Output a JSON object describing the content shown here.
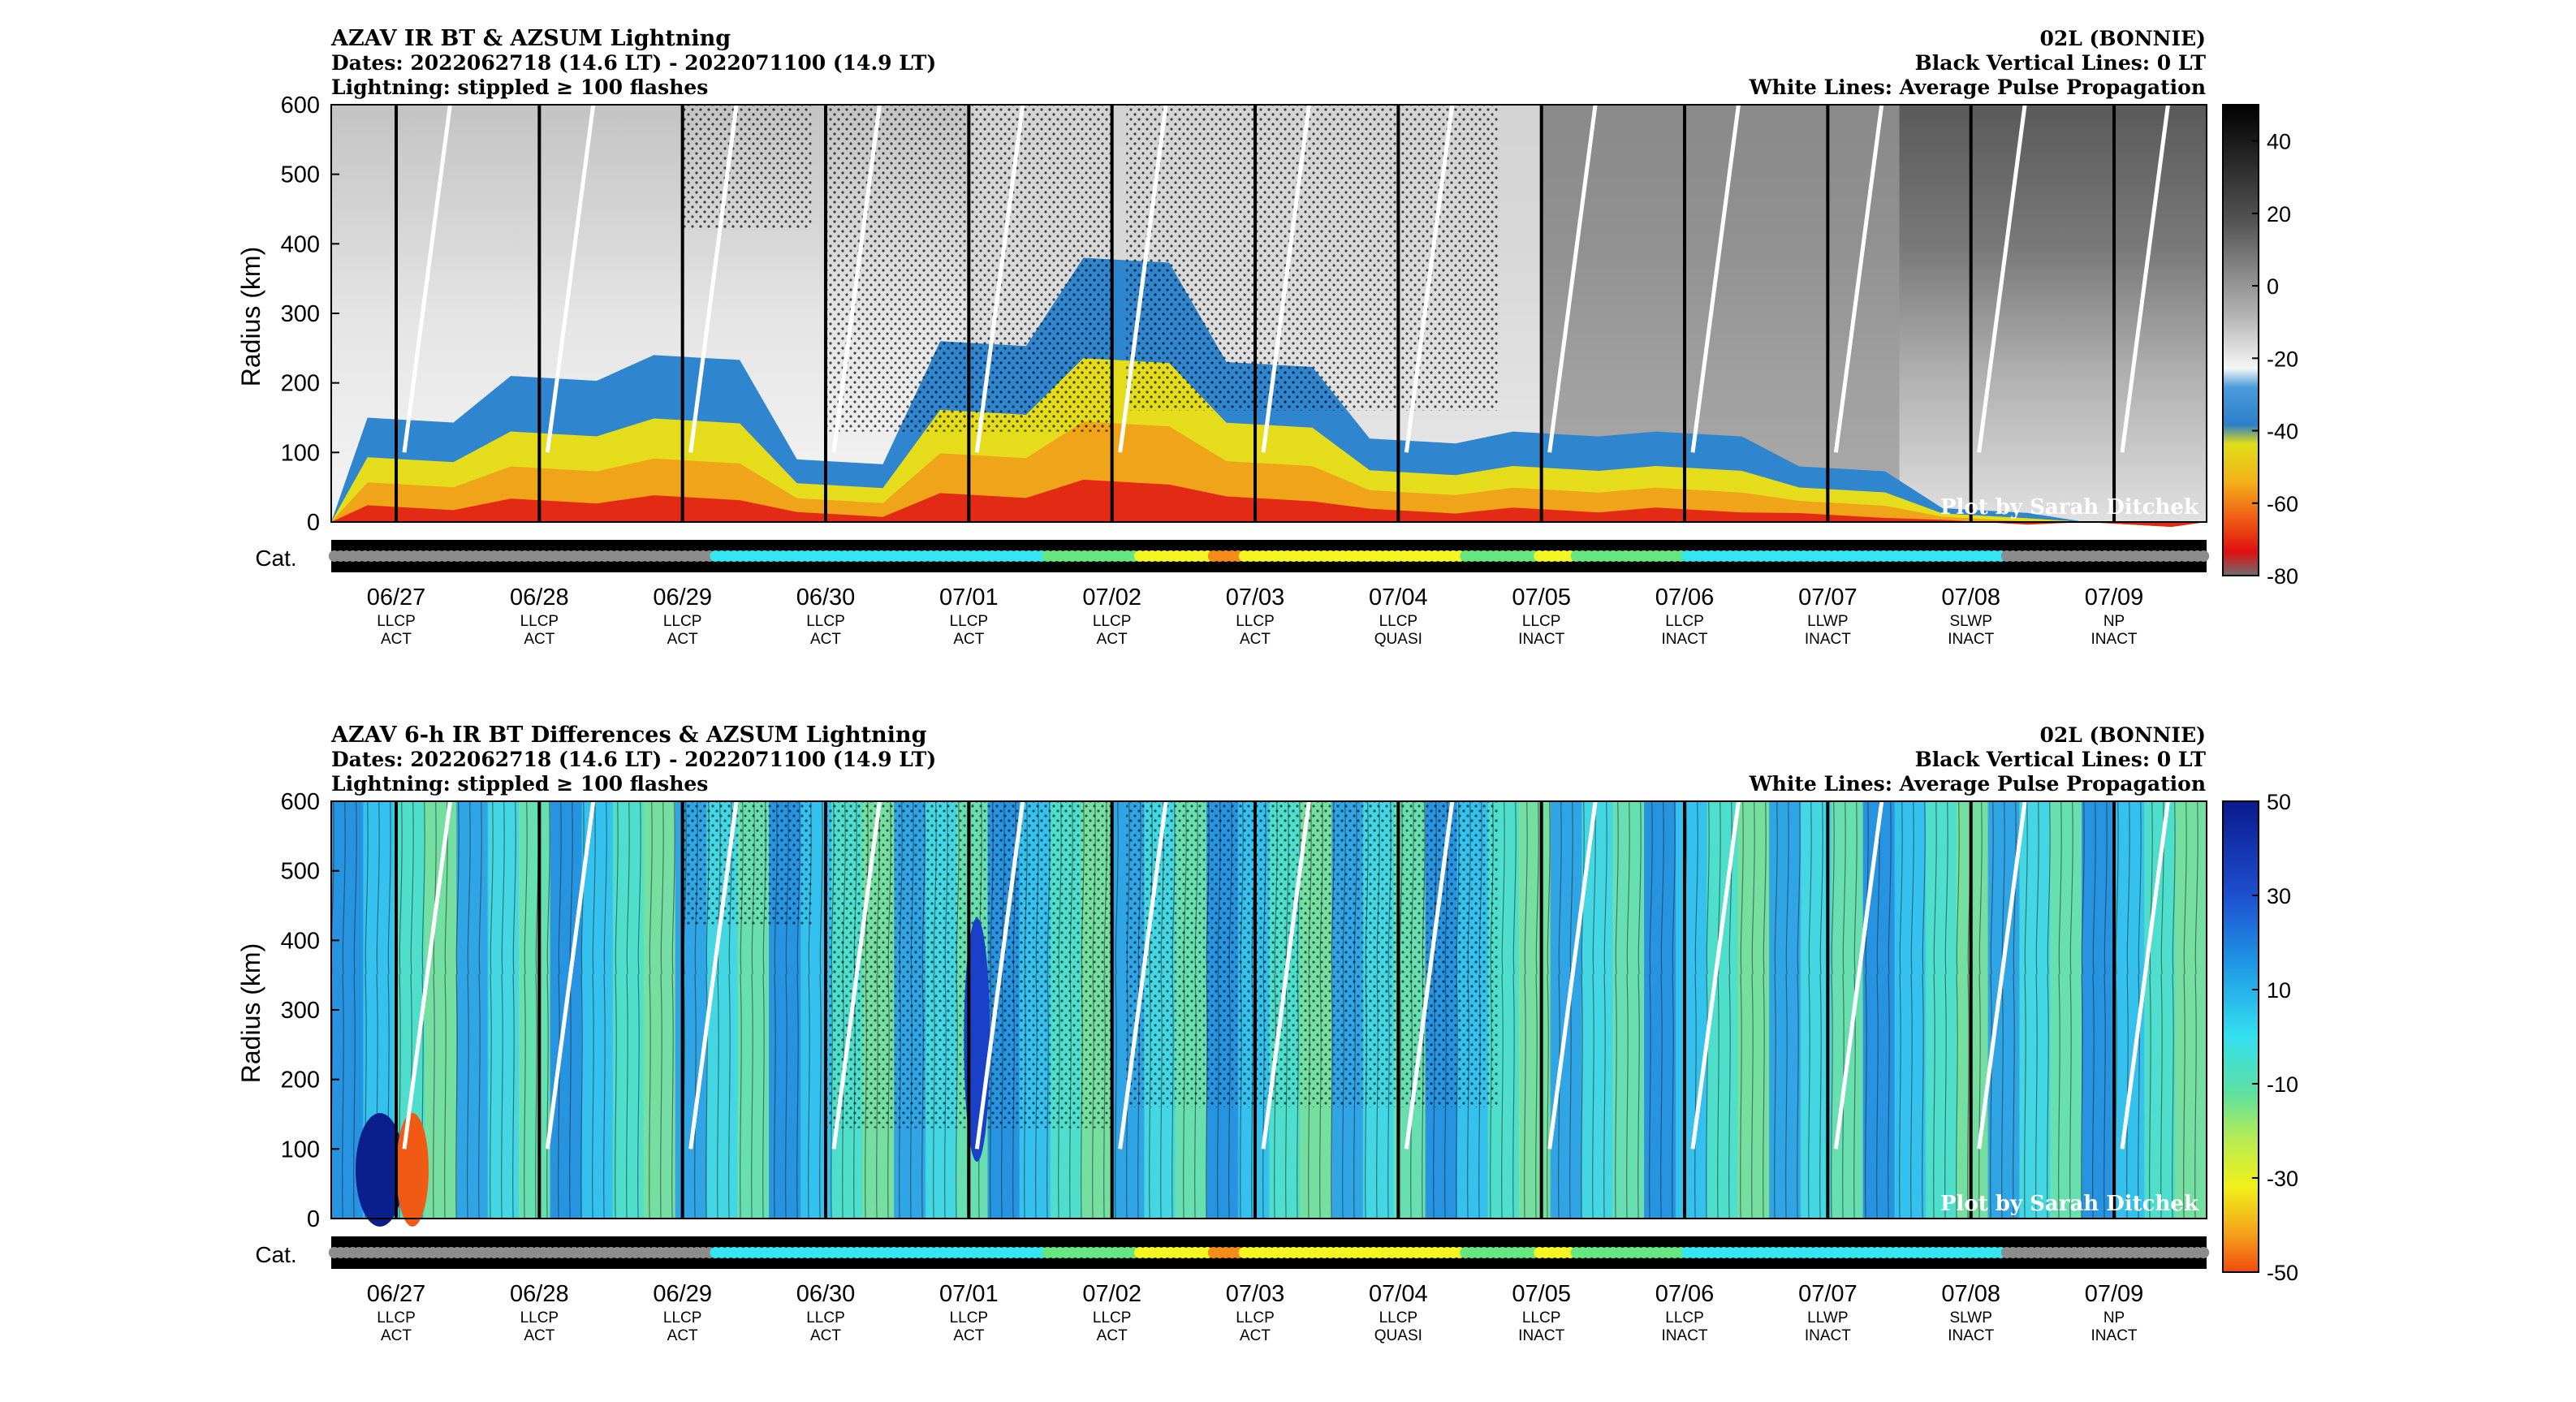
{
  "panels": [
    {
      "title": "AZAV IR BT & AZSUM Lightning",
      "dates": "Dates: 2022062718 (14.6 LT) - 2022071100 (14.9 LT)",
      "lightning": "Lightning: stippled ≥ 100 flashes",
      "storm": "02L (BONNIE)",
      "black_lines": "Black Vertical Lines: 0 LT",
      "white_lines": "White Lines: Average Pulse Propagation",
      "credit": "Plot by Sarah Ditchek",
      "ylabel": "Radius (km)",
      "cat_label": "Cat.",
      "colorbar_ticks": [
        "40",
        "20",
        "0",
        "-20",
        "-40",
        "-60",
        "-80"
      ],
      "colormap": "grayscale-to-blue-yellow-red (IR BT, °C)"
    },
    {
      "title": "AZAV 6-h IR BT Differences & AZSUM Lightning",
      "dates": "Dates: 2022062718 (14.6 LT) - 2022071100 (14.9 LT)",
      "lightning": "Lightning: stippled ≥ 100 flashes",
      "storm": "02L (BONNIE)",
      "black_lines": "Black Vertical Lines: 0 LT",
      "white_lines": "White Lines: Average Pulse Propagation",
      "credit": "Plot by Sarah Ditchek",
      "ylabel": "Radius (km)",
      "cat_label": "Cat.",
      "colorbar_ticks": [
        "50",
        "30",
        "10",
        "-10",
        "-30",
        "-50"
      ],
      "colormap": "blue-cyan-green-yellow-red (6-h BT difference)"
    }
  ],
  "chart_data": [
    {
      "type": "heatmap",
      "title": "AZAV IR BT & AZSUM Lightning",
      "xlabel": "",
      "ylabel": "Radius (km)",
      "ylim": [
        0,
        600
      ],
      "yticks": [
        0,
        100,
        200,
        300,
        400,
        500,
        600
      ],
      "colorbar_range": [
        -80,
        50
      ],
      "x_dates": [
        "06/27",
        "06/28",
        "06/29",
        "06/30",
        "07/01",
        "07/02",
        "07/03",
        "07/04",
        "07/05",
        "07/06",
        "07/07",
        "07/08",
        "07/09"
      ],
      "x_phase": [
        "LLCP",
        "LLCP",
        "LLCP",
        "LLCP",
        "LLCP",
        "LLCP",
        "LLCP",
        "LLCP",
        "LLCP",
        "LLCP",
        "LLWP",
        "SLWP",
        "NP"
      ],
      "x_activity": [
        "ACT",
        "ACT",
        "ACT",
        "ACT",
        "ACT",
        "ACT",
        "ACT",
        "QUASI",
        "INACT",
        "INACT",
        "INACT",
        "INACT",
        "INACT"
      ],
      "cold_cloud_radius_km": [
        150,
        210,
        240,
        90,
        260,
        380,
        230,
        120,
        130,
        130,
        80,
        20,
        0
      ]
    },
    {
      "type": "heatmap",
      "title": "AZAV 6-h IR BT Differences & AZSUM Lightning",
      "xlabel": "",
      "ylabel": "Radius (km)",
      "ylim": [
        0,
        600
      ],
      "yticks": [
        0,
        100,
        200,
        300,
        400,
        500,
        600
      ],
      "colorbar_range": [
        -50,
        50
      ],
      "x_dates": [
        "06/27",
        "06/28",
        "06/29",
        "06/30",
        "07/01",
        "07/02",
        "07/03",
        "07/04",
        "07/05",
        "07/06",
        "07/07",
        "07/08",
        "07/09"
      ],
      "x_phase": [
        "LLCP",
        "LLCP",
        "LLCP",
        "LLCP",
        "LLCP",
        "LLCP",
        "LLCP",
        "LLCP",
        "LLCP",
        "LLCP",
        "LLWP",
        "SLWP",
        "NP"
      ],
      "x_activity": [
        "ACT",
        "ACT",
        "ACT",
        "ACT",
        "ACT",
        "ACT",
        "ACT",
        "QUASI",
        "INACT",
        "INACT",
        "INACT",
        "INACT",
        "INACT"
      ]
    }
  ],
  "category_series": {
    "colors": {
      "grey": "#8c8c8c",
      "cyan": "#33e6f2",
      "green": "#66e680",
      "yellow": "#f5f521",
      "orange": "#f58c1a"
    },
    "sequence": [
      "grey",
      "grey",
      "grey",
      "grey",
      "grey",
      "grey",
      "grey",
      "grey",
      "grey",
      "grey",
      "grey",
      "grey",
      "grey",
      "grey",
      "grey",
      "grey",
      "grey",
      "grey",
      "grey",
      "grey",
      "grey",
      "grey",
      "grey",
      "grey",
      "grey",
      "grey",
      "grey",
      "grey",
      "grey",
      "grey",
      "grey",
      "grey",
      "grey",
      "grey",
      "grey",
      "grey",
      "grey",
      "grey",
      "grey",
      "grey",
      "grey",
      "grey",
      "grey",
      "grey",
      "grey",
      "grey",
      "grey",
      "grey",
      "grey",
      "grey",
      "grey",
      "grey",
      "grey",
      "grey",
      "grey",
      "grey",
      "grey",
      "grey",
      "grey",
      "grey",
      "grey",
      "grey",
      "cyan",
      "cyan",
      "cyan",
      "cyan",
      "cyan",
      "cyan",
      "cyan",
      "cyan",
      "cyan",
      "cyan",
      "cyan",
      "cyan",
      "cyan",
      "cyan",
      "cyan",
      "cyan",
      "cyan",
      "cyan",
      "cyan",
      "cyan",
      "cyan",
      "cyan",
      "cyan",
      "cyan",
      "cyan",
      "cyan",
      "cyan",
      "cyan",
      "cyan",
      "cyan",
      "cyan",
      "cyan",
      "cyan",
      "cyan",
      "cyan",
      "cyan",
      "cyan",
      "cyan",
      "cyan",
      "cyan",
      "cyan",
      "cyan",
      "cyan",
      "cyan",
      "cyan",
      "cyan",
      "cyan",
      "cyan",
      "cyan",
      "cyan",
      "cyan",
      "cyan",
      "cyan",
      "cyan",
      "green",
      "green",
      "green",
      "green",
      "green",
      "green",
      "green",
      "green",
      "green",
      "green",
      "green",
      "green",
      "green",
      "green",
      "green",
      "yellow",
      "yellow",
      "yellow",
      "yellow",
      "yellow",
      "yellow",
      "yellow",
      "yellow",
      "yellow",
      "yellow",
      "yellow",
      "yellow",
      "orange",
      "orange",
      "orange",
      "orange",
      "orange",
      "yellow",
      "yellow",
      "yellow",
      "yellow",
      "yellow",
      "yellow",
      "yellow",
      "yellow",
      "yellow",
      "yellow",
      "yellow",
      "yellow",
      "yellow",
      "yellow",
      "yellow",
      "yellow",
      "yellow",
      "yellow",
      "yellow",
      "yellow",
      "yellow",
      "yellow",
      "yellow",
      "yellow",
      "yellow",
      "yellow",
      "yellow",
      "yellow",
      "yellow",
      "yellow",
      "yellow",
      "yellow",
      "yellow",
      "yellow",
      "yellow",
      "yellow",
      "green",
      "green",
      "green",
      "green",
      "green",
      "green",
      "green",
      "green",
      "green",
      "green",
      "green",
      "green",
      "yellow",
      "yellow",
      "yellow",
      "yellow",
      "yellow",
      "yellow",
      "green",
      "green",
      "green",
      "green",
      "green",
      "green",
      "green",
      "green",
      "green",
      "green",
      "green",
      "green",
      "green",
      "green",
      "green",
      "green",
      "green",
      "green",
      "cyan",
      "cyan",
      "cyan",
      "cyan",
      "cyan",
      "cyan",
      "cyan",
      "cyan",
      "cyan",
      "cyan",
      "cyan",
      "cyan",
      "cyan",
      "cyan",
      "cyan",
      "cyan",
      "cyan",
      "cyan",
      "cyan",
      "cyan",
      "cyan",
      "cyan",
      "cyan",
      "cyan",
      "cyan",
      "cyan",
      "cyan",
      "cyan",
      "cyan",
      "cyan",
      "cyan",
      "cyan",
      "cyan",
      "cyan",
      "cyan",
      "cyan",
      "cyan",
      "cyan",
      "cyan",
      "cyan",
      "cyan",
      "cyan",
      "cyan",
      "cyan",
      "cyan",
      "cyan",
      "cyan",
      "cyan",
      "cyan",
      "cyan",
      "cyan",
      "cyan",
      "grey",
      "grey",
      "grey",
      "grey",
      "grey",
      "grey",
      "grey",
      "grey",
      "grey",
      "grey",
      "grey",
      "grey",
      "grey",
      "grey",
      "grey",
      "grey",
      "grey",
      "grey",
      "grey",
      "grey",
      "grey",
      "grey",
      "grey",
      "grey",
      "grey",
      "grey",
      "grey",
      "grey",
      "grey",
      "grey",
      "grey",
      "grey",
      "grey"
    ]
  }
}
